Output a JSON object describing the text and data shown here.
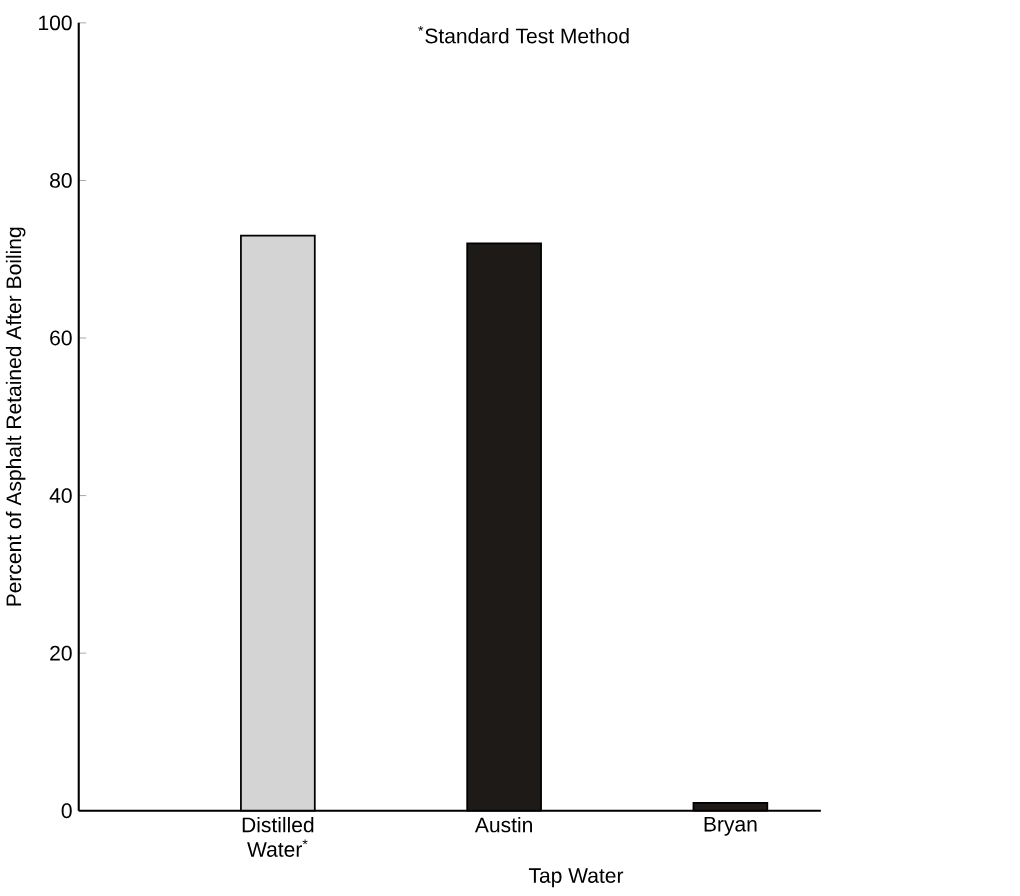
{
  "chart_data": {
    "type": "bar",
    "ylabel": "Percent of Asphalt Retained After Boiling",
    "categories": [
      "Distilled Water$^{*}$",
      "Austin",
      "Bryan"
    ],
    "values": [
      73,
      72,
      1
    ],
    "colors": [
      "#d4d4d4",
      "#1e1a18",
      "#1e1a18"
    ],
    "ylim": [
      0,
      100
    ],
    "yticks": [
      0,
      20,
      40,
      60,
      80,
      100
    ],
    "annotations": [
      "$^{*}$Standard Test Method",
      "Tap Water"
    ]
  }
}
